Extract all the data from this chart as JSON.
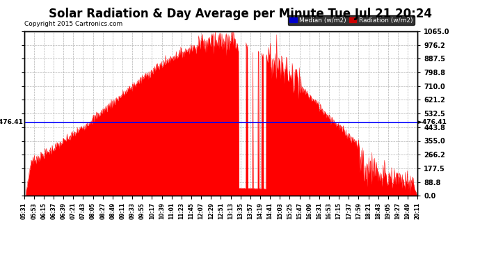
{
  "title": "Solar Radiation & Day Average per Minute Tue Jul 21 20:24",
  "copyright": "Copyright 2015 Cartronics.com",
  "median_value": 476.41,
  "y_min": 0.0,
  "y_max": 1065.0,
  "yticks": [
    0.0,
    88.8,
    177.5,
    266.2,
    355.0,
    443.8,
    532.5,
    621.2,
    710.0,
    798.8,
    887.5,
    976.2,
    1065.0
  ],
  "ytick_labels": [
    "0.0",
    "88.8",
    "177.5",
    "266.2",
    "355.0",
    "443.8",
    "532.5",
    "621.2",
    "710.0",
    "798.8",
    "887.5",
    "976.2",
    "1065.0"
  ],
  "fill_color": "#FF0000",
  "median_color": "#0000FF",
  "background_color": "#FFFFFF",
  "grid_color": "#AAAAAA",
  "legend_median_bg": "#0000CC",
  "legend_radiation_bg": "#CC0000",
  "title_fontsize": 12,
  "xtick_labels": [
    "05:31",
    "05:53",
    "06:15",
    "06:37",
    "06:39",
    "07:21",
    "07:43",
    "08:05",
    "08:27",
    "08:49",
    "09:11",
    "09:33",
    "09:55",
    "10:17",
    "10:39",
    "11:01",
    "11:23",
    "11:45",
    "12:07",
    "12:29",
    "12:51",
    "13:13",
    "13:35",
    "13:57",
    "14:19",
    "14:41",
    "15:03",
    "15:25",
    "15:47",
    "16:09",
    "16:31",
    "16:53",
    "17:15",
    "17:37",
    "17:59",
    "18:21",
    "18:43",
    "19:05",
    "19:27",
    "19:49",
    "20:11"
  ]
}
